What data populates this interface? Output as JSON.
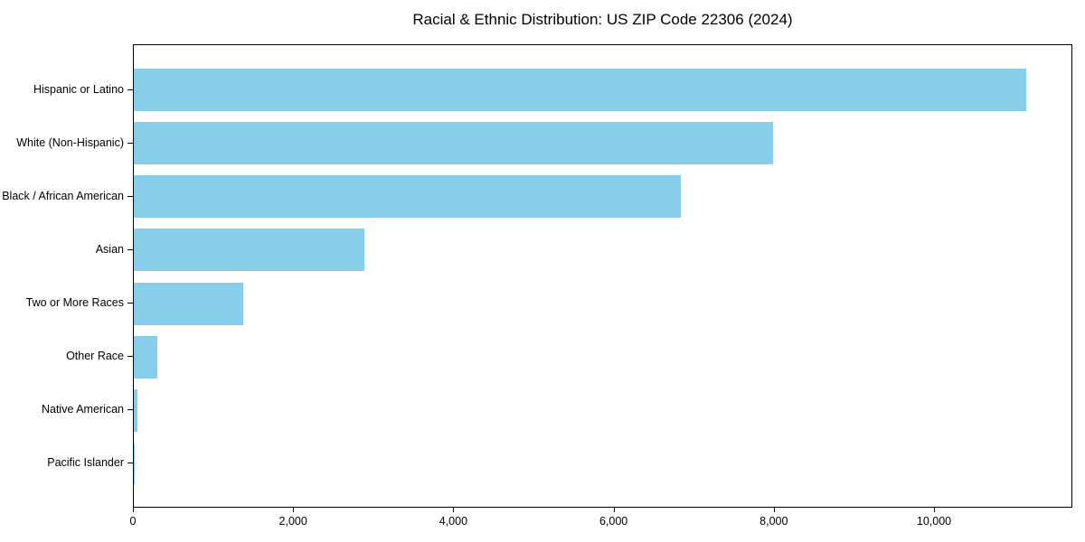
{
  "chart_data": {
    "type": "bar",
    "orientation": "horizontal",
    "title": "Racial & Ethnic Distribution: US ZIP Code 22306 (2024)",
    "categories": [
      "Hispanic or Latino",
      "White (Non-Hispanic)",
      "Black / African American",
      "Asian",
      "Two or More Races",
      "Other Race",
      "Native American",
      "Pacific Islander"
    ],
    "values": [
      11160,
      8000,
      6840,
      2880,
      1370,
      290,
      45,
      10
    ],
    "xlabel": "",
    "ylabel": "",
    "xlim": [
      0,
      11727
    ],
    "xticks": [
      {
        "value": 0,
        "label": "0"
      },
      {
        "value": 2000,
        "label": "2,000"
      },
      {
        "value": 4000,
        "label": "4,000"
      },
      {
        "value": 6000,
        "label": "6,000"
      },
      {
        "value": 8000,
        "label": "8,000"
      },
      {
        "value": 10000,
        "label": "10,000"
      }
    ],
    "bar_color": "#87CEEB",
    "grid": false,
    "legend_position": "none"
  }
}
